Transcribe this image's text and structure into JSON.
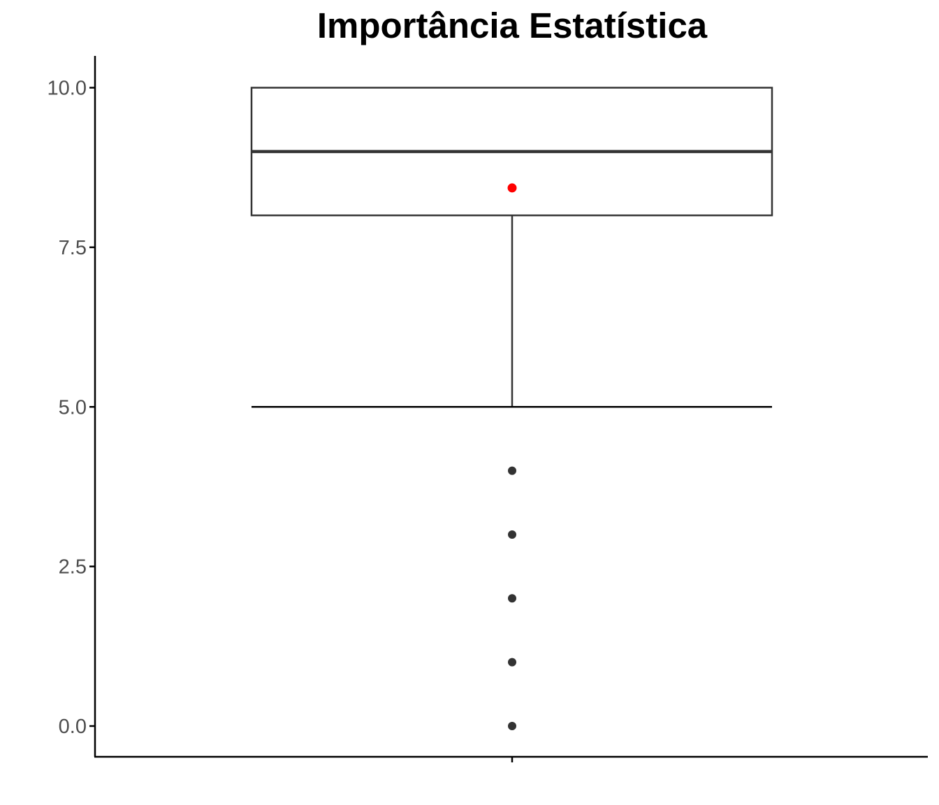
{
  "chart_data": {
    "type": "boxplot",
    "title": "Importância Estatística",
    "xlabel": "",
    "ylabel": "",
    "ylim": [
      -0.5,
      10.5
    ],
    "y_ticks": [
      0.0,
      2.5,
      5.0,
      7.5,
      10.0
    ],
    "y_tick_labels": [
      "0.0",
      "2.5",
      "5.0",
      "7.5",
      "10.0"
    ],
    "grid": false,
    "box": {
      "whisker_low": 5,
      "q1": 8,
      "median": 9,
      "q3": 10,
      "whisker_high": 10,
      "mean": 8.43,
      "outliers": [
        4,
        3,
        2,
        1,
        0
      ]
    },
    "colors": {
      "box_stroke": "#333333",
      "outlier": "#333333",
      "mean_point": "#ff0000",
      "axis": "#000000",
      "tick_label": "#4d4d4d"
    }
  }
}
